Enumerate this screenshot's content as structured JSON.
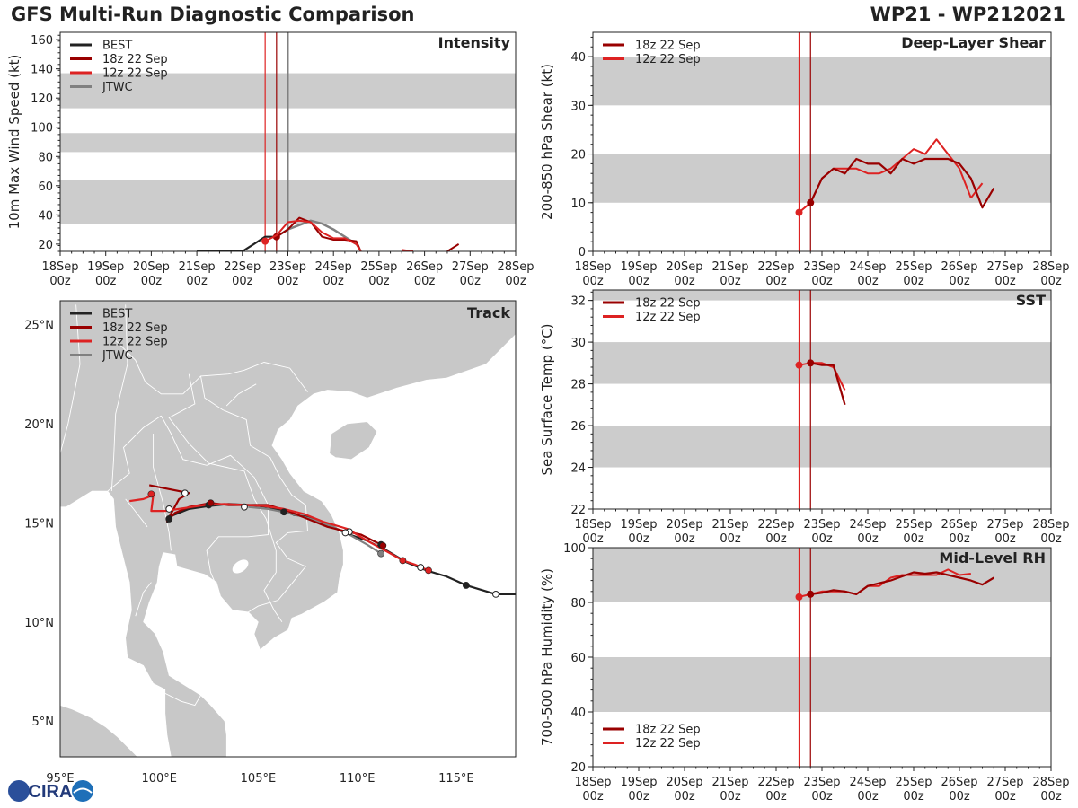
{
  "header": {
    "title": "GFS Multi-Run Diagnostic Comparison",
    "storm_id": "WP21 - WP212021"
  },
  "logo": {
    "text": "CIRA"
  },
  "colors": {
    "best": "#222222",
    "run18": "#990000",
    "run12": "#dd2222",
    "jtwc": "#808080",
    "band": "#cccccc",
    "land": "#c8c8c8",
    "sea": "#ffffff",
    "init18": "#990000",
    "init12": "#dd2222"
  },
  "chart_data": [
    {
      "id": "intensity",
      "type": "line",
      "title": "Intensity",
      "ylabel": "10m Max Wind Speed (kt)",
      "xlim": [
        0,
        10
      ],
      "ylim": [
        15,
        165
      ],
      "xticks": [
        {
          "v": 0,
          "l1": "18Sep",
          "l2": "00z"
        },
        {
          "v": 1,
          "l1": "19Sep",
          "l2": "00z"
        },
        {
          "v": 2,
          "l1": "20Sep",
          "l2": "00z"
        },
        {
          "v": 3,
          "l1": "21Sep",
          "l2": "00z"
        },
        {
          "v": 4,
          "l1": "22Sep",
          "l2": "00z"
        },
        {
          "v": 5,
          "l1": "23Sep",
          "l2": "00z"
        },
        {
          "v": 6,
          "l1": "24Sep",
          "l2": "00z"
        },
        {
          "v": 7,
          "l1": "25Sep",
          "l2": "00z"
        },
        {
          "v": 8,
          "l1": "26Sep",
          "l2": "00z"
        },
        {
          "v": 9,
          "l1": "27Sep",
          "l2": "00z"
        },
        {
          "v": 10,
          "l1": "28Sep",
          "l2": "00z"
        }
      ],
      "yticks": [
        20,
        40,
        60,
        80,
        100,
        120,
        140,
        160
      ],
      "bands": [
        [
          34,
          64
        ],
        [
          83,
          96
        ],
        [
          113,
          137
        ]
      ],
      "vlines": [
        {
          "x": 4.5,
          "color": "init12"
        },
        {
          "x": 4.75,
          "color": "init18"
        },
        {
          "x": 5.0,
          "color": "jtwc"
        }
      ],
      "legend": [
        "BEST",
        "18z 22 Sep",
        "12z 22 Sep",
        "JTWC"
      ],
      "legend_loc": "upper-left",
      "series": [
        {
          "name": "BEST",
          "color": "best",
          "width": 2.2,
          "x": [
            3,
            3.25,
            3.5,
            3.75,
            4,
            4.25,
            4.5,
            4.75,
            5
          ],
          "y": [
            15,
            15,
            15,
            15,
            15,
            20,
            25,
            25,
            30
          ]
        },
        {
          "name": "JTWC",
          "color": "jtwc",
          "width": 2.5,
          "x": [
            5,
            5.25,
            5.5,
            5.75,
            6,
            6.25,
            6.5
          ],
          "y": [
            30,
            33,
            36,
            34,
            30,
            25,
            20
          ]
        },
        {
          "name": "18z 22 Sep",
          "color": "run18",
          "width": 2,
          "x": [
            4.75,
            5,
            5.25,
            5.5,
            5.75,
            6,
            6.25,
            6.5,
            6.6,
            6.75
          ],
          "y": [
            25,
            30,
            38,
            35,
            25,
            23,
            23,
            22,
            15,
            10
          ],
          "marker": {
            "x": 4.75,
            "y": 25
          }
        },
        {
          "name": "12z 22 Sep",
          "color": "run12",
          "width": 2,
          "x": [
            4.5,
            4.75,
            5,
            5.25,
            5.5,
            5.75,
            6,
            6.25,
            6.5,
            6.6
          ],
          "y": [
            22,
            26,
            35,
            36,
            35,
            28,
            24,
            24,
            20,
            15
          ],
          "marker": {
            "x": 4.5,
            "y": 22
          }
        },
        {
          "name": "18z tail",
          "color": "run18",
          "width": 2,
          "x": [
            8.5,
            8.75
          ],
          "y": [
            15,
            20
          ]
        },
        {
          "name": "12z tail",
          "color": "run12",
          "width": 2,
          "x": [
            7.5,
            7.75
          ],
          "y": [
            16,
            15
          ]
        }
      ]
    },
    {
      "id": "shear",
      "type": "line",
      "title": "Deep-Layer Shear",
      "ylabel": "200-850 hPa Shear (kt)",
      "xlim": [
        0,
        10
      ],
      "ylim": [
        0,
        45
      ],
      "xticks": [
        {
          "v": 0,
          "l1": "18Sep",
          "l2": "00z"
        },
        {
          "v": 1,
          "l1": "19Sep",
          "l2": "00z"
        },
        {
          "v": 2,
          "l1": "20Sep",
          "l2": "00z"
        },
        {
          "v": 3,
          "l1": "21Sep",
          "l2": "00z"
        },
        {
          "v": 4,
          "l1": "22Sep",
          "l2": "00z"
        },
        {
          "v": 5,
          "l1": "23Sep",
          "l2": "00z"
        },
        {
          "v": 6,
          "l1": "24Sep",
          "l2": "00z"
        },
        {
          "v": 7,
          "l1": "25Sep",
          "l2": "00z"
        },
        {
          "v": 8,
          "l1": "26Sep",
          "l2": "00z"
        },
        {
          "v": 9,
          "l1": "27Sep",
          "l2": "00z"
        },
        {
          "v": 10,
          "l1": "28Sep",
          "l2": "00z"
        }
      ],
      "yticks": [
        0,
        10,
        20,
        30,
        40
      ],
      "bands": [
        [
          10,
          20
        ],
        [
          30,
          40
        ]
      ],
      "vlines": [
        {
          "x": 4.5,
          "color": "init12"
        },
        {
          "x": 4.75,
          "color": "init18"
        }
      ],
      "legend": [
        "18z 22 Sep",
        "12z 22 Sep"
      ],
      "legend_loc": "upper-left",
      "series": [
        {
          "name": "12z 22 Sep",
          "color": "run12",
          "width": 2,
          "x": [
            4.5,
            4.75,
            5,
            5.25,
            5.5,
            5.75,
            6,
            6.25,
            6.5,
            6.75,
            7,
            7.25,
            7.5,
            7.75,
            8,
            8.25
          ],
          "y": [
            8,
            10,
            15,
            17,
            17,
            17,
            16,
            16,
            17,
            19,
            21,
            20,
            23,
            20,
            17,
            11
          ],
          "marker": {
            "x": 4.5,
            "y": 8
          }
        },
        {
          "name": "12z tail",
          "color": "run12",
          "width": 2,
          "x": [
            8.25,
            8.5
          ],
          "y": [
            11,
            14
          ]
        },
        {
          "name": "18z 22 Sep",
          "color": "run18",
          "width": 2.2,
          "x": [
            4.75,
            5,
            5.25,
            5.5,
            5.75,
            6,
            6.25,
            6.5,
            6.75,
            7,
            7.25,
            7.5,
            7.75,
            8,
            8.25,
            8.5,
            8.75
          ],
          "y": [
            10,
            15,
            17,
            16,
            19,
            18,
            18,
            16,
            19,
            18,
            19,
            19,
            19,
            18,
            15,
            9,
            13
          ],
          "marker": {
            "x": 4.75,
            "y": 10
          }
        }
      ]
    },
    {
      "id": "sst",
      "type": "line",
      "title": "SST",
      "ylabel": "Sea Surface Temp (°C)",
      "xlim": [
        0,
        10
      ],
      "ylim": [
        22,
        32.5
      ],
      "xticks": [
        {
          "v": 0,
          "l1": "18Sep",
          "l2": "00z"
        },
        {
          "v": 1,
          "l1": "19Sep",
          "l2": "00z"
        },
        {
          "v": 2,
          "l1": "20Sep",
          "l2": "00z"
        },
        {
          "v": 3,
          "l1": "21Sep",
          "l2": "00z"
        },
        {
          "v": 4,
          "l1": "22Sep",
          "l2": "00z"
        },
        {
          "v": 5,
          "l1": "23Sep",
          "l2": "00z"
        },
        {
          "v": 6,
          "l1": "24Sep",
          "l2": "00z"
        },
        {
          "v": 7,
          "l1": "25Sep",
          "l2": "00z"
        },
        {
          "v": 8,
          "l1": "26Sep",
          "l2": "00z"
        },
        {
          "v": 9,
          "l1": "27Sep",
          "l2": "00z"
        },
        {
          "v": 10,
          "l1": "28Sep",
          "l2": "00z"
        }
      ],
      "yticks": [
        22,
        24,
        26,
        28,
        30,
        32
      ],
      "bands": [
        [
          24,
          26
        ],
        [
          28,
          30
        ],
        [
          32,
          32.5
        ]
      ],
      "vlines": [
        {
          "x": 4.5,
          "color": "init12"
        },
        {
          "x": 4.75,
          "color": "init18"
        }
      ],
      "legend": [
        "18z 22 Sep",
        "12z 22 Sep"
      ],
      "legend_loc": "upper-left",
      "series": [
        {
          "name": "12z 22 Sep",
          "color": "run12",
          "width": 2,
          "x": [
            4.5,
            4.75,
            5,
            5.25,
            5.5
          ],
          "y": [
            28.9,
            29.0,
            29.0,
            28.8,
            27.7
          ],
          "marker": {
            "x": 4.5,
            "y": 28.9
          }
        },
        {
          "name": "18z 22 Sep",
          "color": "run18",
          "width": 2.2,
          "x": [
            4.75,
            5,
            5.25,
            5.5
          ],
          "y": [
            29.0,
            28.9,
            28.9,
            27.0
          ],
          "marker": {
            "x": 4.75,
            "y": 29.0
          }
        }
      ]
    },
    {
      "id": "rh",
      "type": "line",
      "title": "Mid-Level RH",
      "ylabel": "700-500 hPa Humidity (%)",
      "xlim": [
        0,
        10
      ],
      "ylim": [
        20,
        100
      ],
      "xticks": [
        {
          "v": 0,
          "l1": "18Sep",
          "l2": "00z"
        },
        {
          "v": 1,
          "l1": "19Sep",
          "l2": "00z"
        },
        {
          "v": 2,
          "l1": "20Sep",
          "l2": "00z"
        },
        {
          "v": 3,
          "l1": "21Sep",
          "l2": "00z"
        },
        {
          "v": 4,
          "l1": "22Sep",
          "l2": "00z"
        },
        {
          "v": 5,
          "l1": "23Sep",
          "l2": "00z"
        },
        {
          "v": 6,
          "l1": "24Sep",
          "l2": "00z"
        },
        {
          "v": 7,
          "l1": "25Sep",
          "l2": "00z"
        },
        {
          "v": 8,
          "l1": "26Sep",
          "l2": "00z"
        },
        {
          "v": 9,
          "l1": "27Sep",
          "l2": "00z"
        },
        {
          "v": 10,
          "l1": "28Sep",
          "l2": "00z"
        }
      ],
      "yticks": [
        20,
        40,
        60,
        80,
        100
      ],
      "bands": [
        [
          40,
          60
        ],
        [
          80,
          100
        ]
      ],
      "vlines": [
        {
          "x": 4.5,
          "color": "init12"
        },
        {
          "x": 4.75,
          "color": "init18"
        }
      ],
      "legend": [
        "18z 22 Sep",
        "12z 22 Sep"
      ],
      "legend_loc": "lower-left",
      "series": [
        {
          "name": "12z 22 Sep",
          "color": "run12",
          "width": 2,
          "x": [
            4.5,
            4.75,
            5,
            5.25,
            5.5,
            5.75,
            6,
            6.25,
            6.5,
            6.75,
            7,
            7.25,
            7.5,
            7.75,
            8,
            8.25
          ],
          "y": [
            82,
            83,
            84,
            84,
            84,
            83,
            86,
            86,
            89,
            90,
            90,
            90,
            90,
            92,
            90,
            90.5
          ],
          "marker": {
            "x": 4.5,
            "y": 82
          }
        },
        {
          "name": "18z 22 Sep",
          "color": "run18",
          "width": 2.2,
          "x": [
            4.75,
            5,
            5.25,
            5.5,
            5.75,
            6,
            6.25,
            6.5,
            6.75,
            7,
            7.25,
            7.5,
            7.75,
            8,
            8.25,
            8.5,
            8.75
          ],
          "y": [
            83,
            83.5,
            84.5,
            84,
            83,
            86,
            87,
            88,
            89.5,
            91,
            90.5,
            91,
            90,
            89,
            88,
            86.5,
            89
          ],
          "marker": {
            "x": 4.75,
            "y": 83
          }
        }
      ]
    },
    {
      "id": "track",
      "type": "scatter",
      "title": "Track",
      "xlim": [
        95,
        118
      ],
      "ylim": [
        3.2,
        26.2
      ],
      "xticks": [
        {
          "v": 95,
          "l": "95°E"
        },
        {
          "v": 100,
          "l": "100°E"
        },
        {
          "v": 105,
          "l": "105°E"
        },
        {
          "v": 110,
          "l": "110°E"
        },
        {
          "v": 115,
          "l": "115°E"
        }
      ],
      "yticks": [
        {
          "v": 5,
          "l": "5°N"
        },
        {
          "v": 10,
          "l": "10°N"
        },
        {
          "v": 15,
          "l": "15°N"
        },
        {
          "v": 20,
          "l": "20°N"
        },
        {
          "v": 25,
          "l": "25°N"
        }
      ],
      "legend": [
        "BEST",
        "18z 22 Sep",
        "12z 22 Sep",
        "JTWC"
      ],
      "legend_loc": "upper-left",
      "series": [
        {
          "name": "BEST",
          "color": "best",
          "width": 2.2,
          "lon": [
            118,
            117,
            116.5,
            115.5,
            114.5,
            113.5,
            112.5,
            111.5,
            110.5,
            109.5,
            108.5,
            107.5,
            106.8,
            106.3,
            105.5,
            104.5,
            103.5,
            102.5,
            101.5,
            100.5,
            100.4
          ],
          "lat": [
            11.4,
            11.4,
            11.55,
            11.85,
            12.3,
            12.6,
            13.0,
            13.6,
            14.1,
            14.45,
            14.9,
            15.3,
            15.4,
            15.6,
            15.8,
            15.9,
            15.95,
            15.85,
            15.7,
            15.3,
            15.0
          ],
          "filled": [
            [
              115.5,
              11.85
            ],
            [
              111.2,
              13.9
            ],
            [
              106.3,
              15.55
            ],
            [
              102.5,
              15.9
            ],
            [
              100.5,
              15.2
            ]
          ],
          "hollow": [
            [
              117,
              11.4
            ],
            [
              113.2,
              12.75
            ],
            [
              109.6,
              14.55
            ],
            [
              104.3,
              15.8
            ],
            [
              100.5,
              15.7
            ]
          ]
        },
        {
          "name": "JTWC",
          "color": "jtwc",
          "width": 2.2,
          "lon": [
            111.2,
            110.5,
            109.7,
            108.8,
            107.5,
            106.5,
            105.5,
            104.5
          ],
          "lat": [
            13.45,
            13.9,
            14.35,
            14.8,
            15.25,
            15.5,
            15.7,
            15.8
          ],
          "filled": [
            [
              111.2,
              13.45
            ]
          ],
          "hollow": [
            [
              109.4,
              14.5
            ]
          ]
        },
        {
          "name": "18z 22 Sep",
          "color": "run18",
          "width": 2.2,
          "lon": [
            111.3,
            111,
            110.2,
            109.3,
            108.5,
            107.5,
            106.5,
            105.5,
            104.5,
            103.5,
            102.6,
            101.5,
            100.8,
            100.4,
            101.0,
            101.5,
            100.5,
            99.5
          ],
          "lat": [
            13.9,
            14.0,
            14.4,
            14.6,
            14.8,
            15.2,
            15.6,
            15.9,
            15.9,
            15.9,
            16.0,
            15.8,
            15.5,
            15.1,
            16.2,
            16.5,
            16.7,
            16.9
          ],
          "filled": [
            [
              111.3,
              13.85
            ],
            [
              102.6,
              16.0
            ]
          ],
          "hollow": [
            [
              101.3,
              16.5
            ]
          ]
        },
        {
          "name": "12z 22 Sep",
          "color": "run12",
          "width": 2.2,
          "lon": [
            113.6,
            112.9,
            112.3,
            111.6,
            110.5,
            109.5,
            108.3,
            107.3,
            106.3,
            105.3,
            104.3,
            103.3,
            102.3,
            101.3,
            100.3,
            99.6,
            99.7,
            99.2,
            98.5
          ],
          "lat": [
            12.6,
            12.9,
            13.1,
            13.5,
            14.1,
            14.7,
            15.05,
            15.45,
            15.7,
            15.85,
            15.9,
            15.95,
            15.9,
            15.75,
            15.6,
            15.6,
            16.4,
            16.2,
            16.1
          ],
          "filled": [
            [
              113.6,
              12.6
            ],
            [
              112.3,
              13.1
            ],
            [
              99.6,
              16.45
            ]
          ],
          "hollow": []
        }
      ]
    }
  ]
}
